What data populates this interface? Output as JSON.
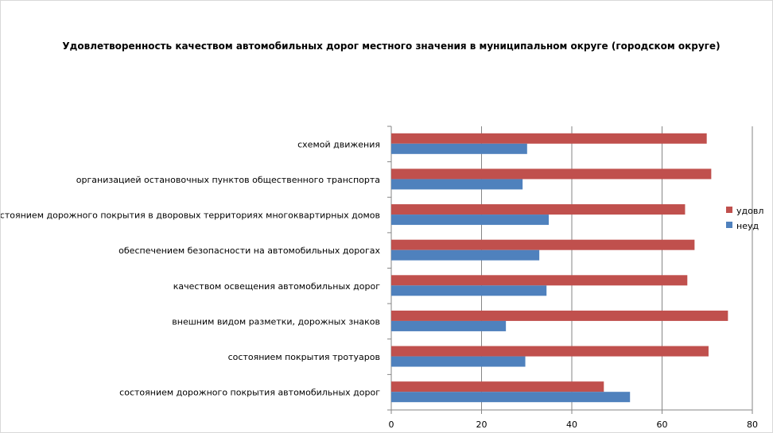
{
  "chart_data": {
    "type": "bar",
    "orientation": "horizontal",
    "title": "Удовлетворенность качеством автомобильных дорог местного значения в муниципальном округе (городском округе)",
    "categories": [
      "схемой движения",
      "организацией остановочных пунктов общественного транспорта",
      "состоянием дорожного покрытия в дворовых территориях многоквартирных домов",
      "обеспечением безопасности на автомобильных дорогах",
      "качеством освещения автомобильных дорог",
      "внешним видом разметки, дорожных знаков",
      "состоянием покрытия тротуаров",
      "состоянием дорожного покрытия автомобильных дорог"
    ],
    "series": [
      {
        "name": "удовл",
        "color": "#c0504d",
        "values": [
          69.9,
          70.9,
          65.1,
          67.2,
          65.6,
          74.6,
          70.3,
          47.1
        ]
      },
      {
        "name": "неуд",
        "color": "#4f81bd",
        "values": [
          30.1,
          29.1,
          34.9,
          32.8,
          34.4,
          25.4,
          29.7,
          52.9
        ]
      }
    ],
    "xlim": [
      0,
      80
    ],
    "xticks": [
      "0",
      "20",
      "40",
      "60",
      "80"
    ],
    "grid": true,
    "legend": "right",
    "xlabel": "",
    "ylabel": ""
  }
}
